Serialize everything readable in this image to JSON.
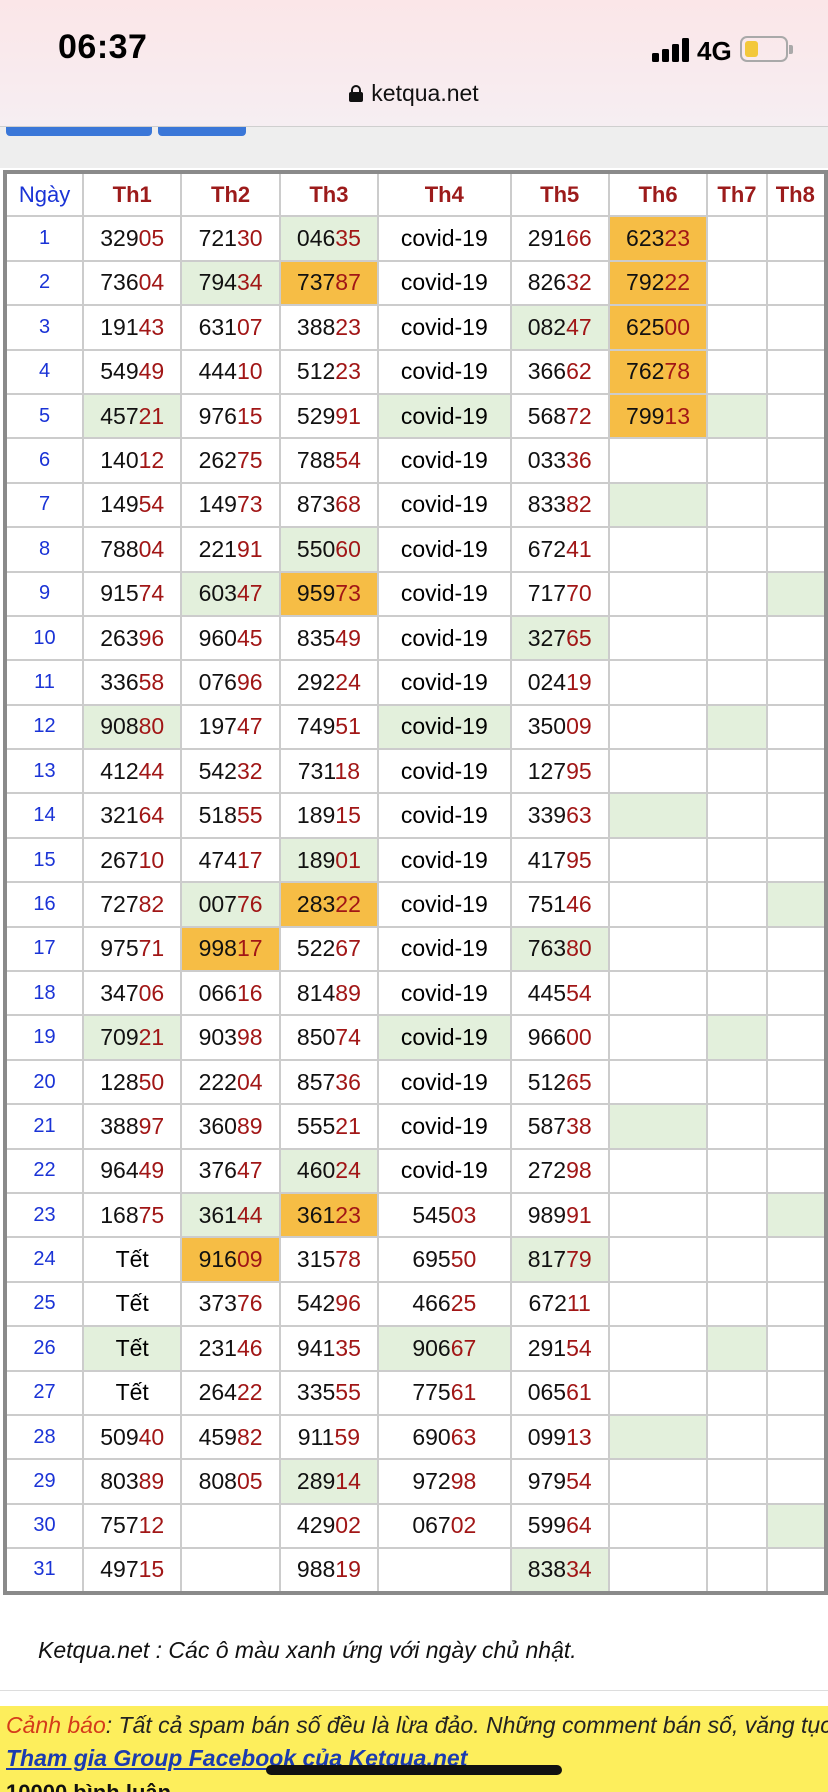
{
  "status": {
    "time": "06:37",
    "network": "4G"
  },
  "browser": {
    "url": "ketqua.net"
  },
  "table": {
    "day_header": "Ngày",
    "columns": [
      "Th1",
      "Th2",
      "Th3",
      "Th4",
      "Th5",
      "Th6",
      "Th7",
      "Th8"
    ],
    "rows": [
      {
        "day": "1",
        "cells": [
          "32905",
          "72130",
          "04635",
          "covid-19",
          "29166",
          "62323",
          "",
          ""
        ]
      },
      {
        "day": "2",
        "cells": [
          "73604",
          "79434",
          "73787",
          "covid-19",
          "82632",
          "79222",
          "",
          ""
        ]
      },
      {
        "day": "3",
        "cells": [
          "19143",
          "63107",
          "38823",
          "covid-19",
          "08247",
          "62500",
          "",
          ""
        ]
      },
      {
        "day": "4",
        "cells": [
          "54949",
          "44410",
          "51223",
          "covid-19",
          "36662",
          "76278",
          "",
          ""
        ]
      },
      {
        "day": "5",
        "cells": [
          "45721",
          "97615",
          "52991",
          "covid-19",
          "56872",
          "79913",
          "",
          ""
        ]
      },
      {
        "day": "6",
        "cells": [
          "14012",
          "26275",
          "78854",
          "covid-19",
          "03336",
          "",
          "",
          ""
        ]
      },
      {
        "day": "7",
        "cells": [
          "14954",
          "14973",
          "87368",
          "covid-19",
          "83382",
          "",
          "",
          ""
        ]
      },
      {
        "day": "8",
        "cells": [
          "78804",
          "22191",
          "55060",
          "covid-19",
          "67241",
          "",
          "",
          ""
        ]
      },
      {
        "day": "9",
        "cells": [
          "91574",
          "60347",
          "95973",
          "covid-19",
          "71770",
          "",
          "",
          ""
        ]
      },
      {
        "day": "10",
        "cells": [
          "26396",
          "96045",
          "83549",
          "covid-19",
          "32765",
          "",
          "",
          ""
        ]
      },
      {
        "day": "11",
        "cells": [
          "33658",
          "07696",
          "29224",
          "covid-19",
          "02419",
          "",
          "",
          ""
        ]
      },
      {
        "day": "12",
        "cells": [
          "90880",
          "19747",
          "74951",
          "covid-19",
          "35009",
          "",
          "",
          ""
        ]
      },
      {
        "day": "13",
        "cells": [
          "41244",
          "54232",
          "73118",
          "covid-19",
          "12795",
          "",
          "",
          ""
        ]
      },
      {
        "day": "14",
        "cells": [
          "32164",
          "51855",
          "18915",
          "covid-19",
          "33963",
          "",
          "",
          ""
        ]
      },
      {
        "day": "15",
        "cells": [
          "26710",
          "47417",
          "18901",
          "covid-19",
          "41795",
          "",
          "",
          ""
        ]
      },
      {
        "day": "16",
        "cells": [
          "72782",
          "00776",
          "28322",
          "covid-19",
          "75146",
          "",
          "",
          ""
        ]
      },
      {
        "day": "17",
        "cells": [
          "97571",
          "99817",
          "52267",
          "covid-19",
          "76380",
          "",
          "",
          ""
        ]
      },
      {
        "day": "18",
        "cells": [
          "34706",
          "06616",
          "81489",
          "covid-19",
          "44554",
          "",
          "",
          ""
        ]
      },
      {
        "day": "19",
        "cells": [
          "70921",
          "90398",
          "85074",
          "covid-19",
          "96600",
          "",
          "",
          ""
        ]
      },
      {
        "day": "20",
        "cells": [
          "12850",
          "22204",
          "85736",
          "covid-19",
          "51265",
          "",
          "",
          ""
        ]
      },
      {
        "day": "21",
        "cells": [
          "38897",
          "36089",
          "55521",
          "covid-19",
          "58738",
          "",
          "",
          ""
        ]
      },
      {
        "day": "22",
        "cells": [
          "96449",
          "37647",
          "46024",
          "covid-19",
          "27298",
          "",
          "",
          ""
        ]
      },
      {
        "day": "23",
        "cells": [
          "16875",
          "36144",
          "36123",
          "54503",
          "98991",
          "",
          "",
          ""
        ]
      },
      {
        "day": "24",
        "cells": [
          "Tết",
          "91609",
          "31578",
          "69550",
          "81779",
          "",
          "",
          ""
        ]
      },
      {
        "day": "25",
        "cells": [
          "Tết",
          "37376",
          "54296",
          "46625",
          "67211",
          "",
          "",
          ""
        ]
      },
      {
        "day": "26",
        "cells": [
          "Tết",
          "23146",
          "94135",
          "90667",
          "29154",
          "",
          "",
          ""
        ]
      },
      {
        "day": "27",
        "cells": [
          "Tết",
          "26422",
          "33555",
          "77561",
          "06561",
          "",
          "",
          ""
        ]
      },
      {
        "day": "28",
        "cells": [
          "50940",
          "45982",
          "91159",
          "69063",
          "09913",
          "",
          "",
          ""
        ]
      },
      {
        "day": "29",
        "cells": [
          "80389",
          "80805",
          "28914",
          "97298",
          "97954",
          "",
          "",
          ""
        ]
      },
      {
        "day": "30",
        "cells": [
          "75712",
          "",
          "42902",
          "06702",
          "59964",
          "",
          "",
          ""
        ]
      },
      {
        "day": "31",
        "cells": [
          "49715",
          "",
          "98819",
          "",
          "83834",
          "",
          "",
          ""
        ]
      }
    ],
    "green_cells": [
      [
        0,
        2
      ],
      [
        1,
        1
      ],
      [
        2,
        4
      ],
      [
        4,
        0
      ],
      [
        4,
        3
      ],
      [
        4,
        6
      ],
      [
        6,
        5
      ],
      [
        7,
        2
      ],
      [
        8,
        1
      ],
      [
        8,
        7
      ],
      [
        9,
        4
      ],
      [
        11,
        0
      ],
      [
        11,
        3
      ],
      [
        11,
        6
      ],
      [
        13,
        5
      ],
      [
        14,
        2
      ],
      [
        15,
        1
      ],
      [
        15,
        7
      ],
      [
        16,
        4
      ],
      [
        18,
        0
      ],
      [
        18,
        3
      ],
      [
        18,
        6
      ],
      [
        20,
        5
      ],
      [
        21,
        2
      ],
      [
        22,
        1
      ],
      [
        22,
        7
      ],
      [
        23,
        4
      ],
      [
        25,
        0
      ],
      [
        25,
        3
      ],
      [
        25,
        6
      ],
      [
        27,
        5
      ],
      [
        28,
        2
      ],
      [
        29,
        7
      ],
      [
        30,
        4
      ]
    ],
    "orange_cells": [
      [
        0,
        5
      ],
      [
        1,
        2
      ],
      [
        1,
        5
      ],
      [
        2,
        5
      ],
      [
        3,
        5
      ],
      [
        4,
        5
      ],
      [
        8,
        2
      ],
      [
        15,
        2
      ],
      [
        16,
        1
      ],
      [
        22,
        2
      ],
      [
        23,
        1
      ]
    ]
  },
  "note": "Ketqua.net : Các ô màu xanh ứng với ngày chủ nhật.",
  "warning": {
    "label": "Cảnh báo",
    "text": ": Tất cả spam bán số đều là lừa đảo. Những comment bán số, văng tục",
    "link": "Tham gia Group Facebook của Ketqua.net",
    "cut_line": "10000 bình luận"
  },
  "colors": {
    "green_cell": "#e3f0dc",
    "orange_cell": "#f6bd45",
    "day_blue": "#1a33d6",
    "header_red": "#9c1b1b"
  }
}
